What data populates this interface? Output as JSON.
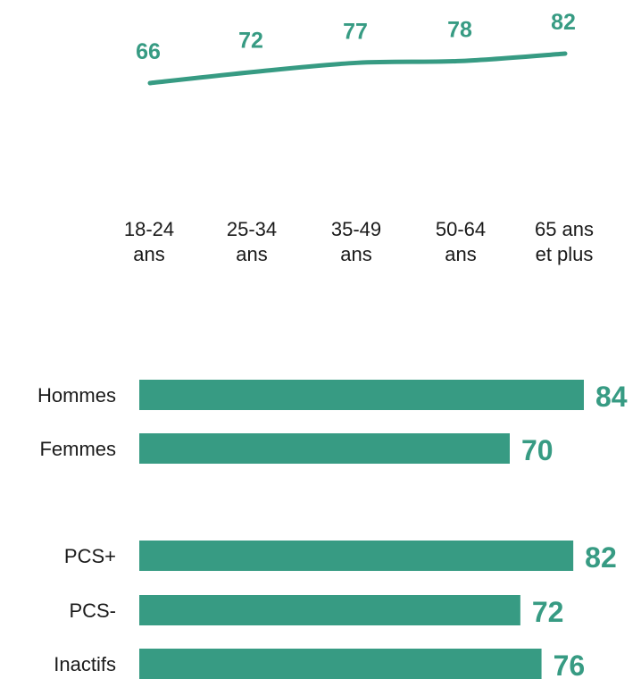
{
  "colors": {
    "accent": "#379b83",
    "text": "#1a1a1a"
  },
  "chart_data": [
    {
      "type": "line",
      "categories": [
        [
          "18-24",
          "ans"
        ],
        [
          "25-34",
          "ans"
        ],
        [
          "35-49",
          "ans"
        ],
        [
          "50-64",
          "ans"
        ],
        [
          "65 ans",
          "et plus"
        ]
      ],
      "values": [
        66,
        72,
        77,
        78,
        82
      ]
    },
    {
      "type": "bar",
      "orientation": "horizontal",
      "groups": [
        {
          "categories": [
            "Hommes",
            "Femmes"
          ],
          "values": [
            84,
            70
          ]
        },
        {
          "categories": [
            "PCS+",
            "PCS-",
            "Inactifs"
          ],
          "values": [
            82,
            72,
            76
          ]
        }
      ]
    }
  ]
}
